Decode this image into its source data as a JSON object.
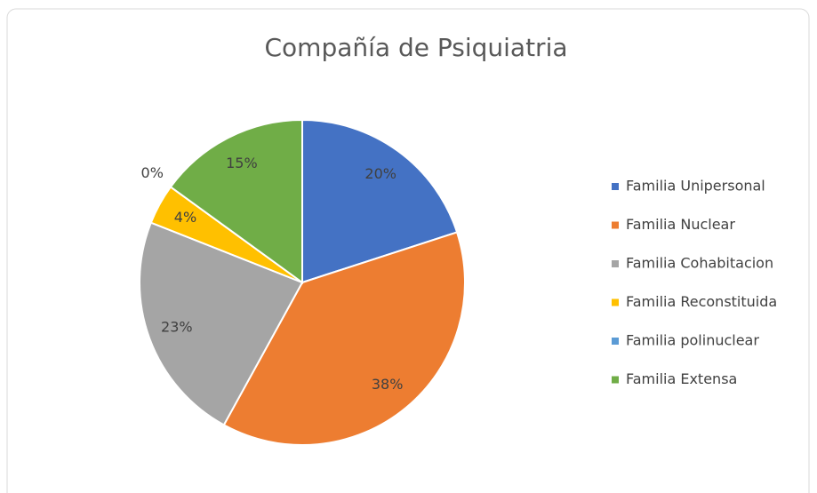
{
  "chart_data": {
    "type": "pie",
    "title": "Compañía de Psiquiatria",
    "categories": [
      "Familia Unipersonal",
      "Familia Nuclear",
      "Familia Cohabitacion",
      "Familia Reconstituida",
      "Familia polinuclear",
      "Familia Extensa"
    ],
    "values": [
      20,
      38,
      23,
      4,
      0,
      15
    ],
    "value_labels": [
      "20%",
      "38%",
      "23%",
      "4%",
      "0%",
      "15%"
    ],
    "colors": [
      "#4472c4",
      "#ed7d31",
      "#a5a5a5",
      "#ffc000",
      "#5b9bd5",
      "#70ad47"
    ],
    "legend": "right"
  }
}
